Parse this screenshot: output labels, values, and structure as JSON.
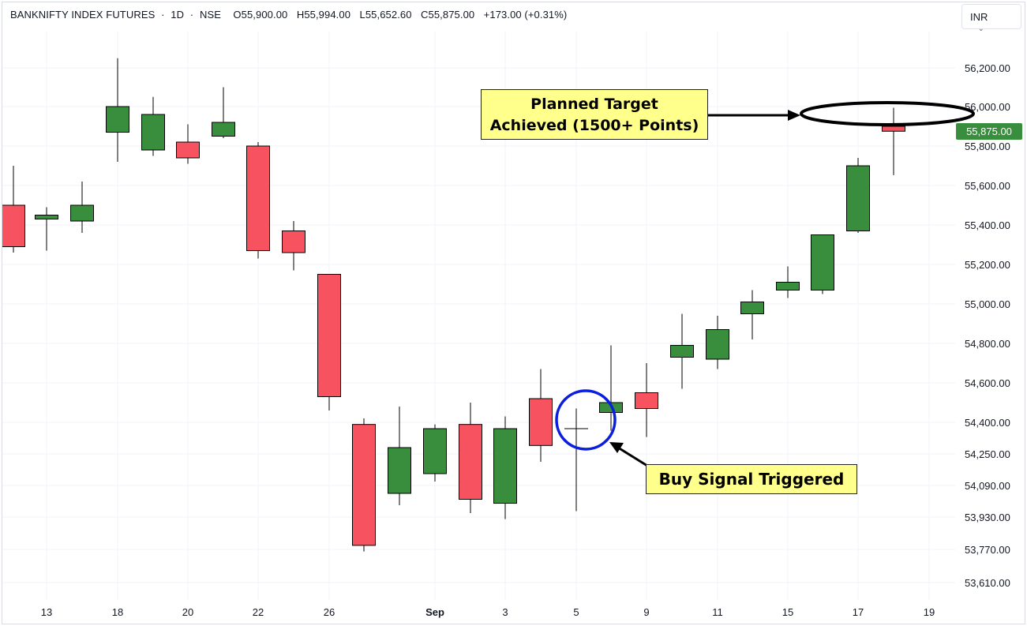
{
  "header": {
    "symbol": "BANKNIFTY INDEX FUTURES",
    "interval": "1D",
    "exchange": "NSE",
    "open_label": "O",
    "open": "55,900.00",
    "high_label": "H",
    "high": "55,994.00",
    "low_label": "L",
    "low": "55,652.60",
    "close_label": "C",
    "close": "55,875.00",
    "change": "+173.00 (+0.31%)",
    "separator": "·"
  },
  "currency": {
    "label": "INR",
    "caret": "⌄"
  },
  "last_price": {
    "label": "55,875.00",
    "color": "#388e3c"
  },
  "annotations": {
    "target_line1": "Planned Target",
    "target_line2": "Achieved (1500+ Points)",
    "buy_signal": "Buy Signal Triggered",
    "callout_fill": "#ffff8c",
    "buy_circle_color": "#0a1ee0",
    "target_ellipse_color": "#000000"
  },
  "colors": {
    "up": "#388e3c",
    "down": "#f7525f",
    "wick": "#000000",
    "grid": "#f0f3fa",
    "text": "#131722"
  },
  "chart_data": {
    "type": "candlestick",
    "title": "BANKNIFTY INDEX FUTURES · 1D · NSE",
    "y_ticks": [
      "56,200.00",
      "56,000.00",
      "55,800.00",
      "55,600.00",
      "55,400.00",
      "55,200.00",
      "55,000.00",
      "54,800.00",
      "54,600.00",
      "54,400.00",
      "54,250.00",
      "54,090.00",
      "53,930.00",
      "53,770.00",
      "53,610.00"
    ],
    "x_ticks": [
      "13",
      "18",
      "20",
      "22",
      "26",
      "Sep",
      "3",
      "5",
      "9",
      "11",
      "15",
      "17",
      "19"
    ],
    "candles": [
      {
        "date": "Aug 11",
        "open": 55500,
        "high": 55700,
        "low": 55260,
        "close": 55290
      },
      {
        "date": "Aug 12",
        "open": 55430,
        "high": 55490,
        "low": 55270,
        "close": 55450
      },
      {
        "date": "Aug 14",
        "open": 55420,
        "high": 55620,
        "low": 55360,
        "close": 55500
      },
      {
        "date": "Aug 18",
        "open": 55870,
        "high": 56250,
        "low": 55720,
        "close": 56000
      },
      {
        "date": "Aug 19",
        "open": 55780,
        "high": 56050,
        "low": 55750,
        "close": 55960
      },
      {
        "date": "Aug 20",
        "open": 55820,
        "high": 55910,
        "low": 55710,
        "close": 55740
      },
      {
        "date": "Aug 21",
        "open": 55850,
        "high": 56100,
        "low": 55840,
        "close": 55920
      },
      {
        "date": "Aug 22",
        "open": 55800,
        "high": 55820,
        "low": 55230,
        "close": 55270
      },
      {
        "date": "Aug 25",
        "open": 55370,
        "high": 55420,
        "low": 55170,
        "close": 55260
      },
      {
        "date": "Aug 26",
        "open": 55150,
        "high": 55150,
        "low": 54460,
        "close": 54530
      },
      {
        "date": "Aug 28",
        "open": 54390,
        "high": 54420,
        "low": 53760,
        "close": 53790
      },
      {
        "date": "Aug 29",
        "open": 54050,
        "high": 54480,
        "low": 53990,
        "close": 54280
      },
      {
        "date": "Sep 1",
        "open": 54150,
        "high": 54390,
        "low": 54110,
        "close": 54370
      },
      {
        "date": "Sep 2",
        "open": 54390,
        "high": 54500,
        "low": 53950,
        "close": 54020
      },
      {
        "date": "Sep 3",
        "open": 54000,
        "high": 54430,
        "low": 53920,
        "close": 54370
      },
      {
        "date": "Sep 4",
        "open": 54520,
        "high": 54670,
        "low": 54210,
        "close": 54290
      },
      {
        "date": "Sep 5",
        "open": 54370,
        "high": 54470,
        "low": 53960,
        "close": 54370
      },
      {
        "date": "Sep 8",
        "open": 54450,
        "high": 54790,
        "low": 54360,
        "close": 54500
      },
      {
        "date": "Sep 9",
        "open": 54550,
        "high": 54700,
        "low": 54330,
        "close": 54470
      },
      {
        "date": "Sep 10",
        "open": 54730,
        "high": 54950,
        "low": 54570,
        "close": 54790
      },
      {
        "date": "Sep 11",
        "open": 54720,
        "high": 54940,
        "low": 54670,
        "close": 54870
      },
      {
        "date": "Sep 12",
        "open": 54950,
        "high": 55070,
        "low": 54820,
        "close": 55010
      },
      {
        "date": "Sep 15",
        "open": 55070,
        "high": 55190,
        "low": 55030,
        "close": 55110
      },
      {
        "date": "Sep 16",
        "open": 55070,
        "high": 55350,
        "low": 55050,
        "close": 55350
      },
      {
        "date": "Sep 17",
        "open": 55370,
        "high": 55740,
        "low": 55360,
        "close": 55700
      },
      {
        "date": "Sep 18",
        "open": 55900,
        "high": 55994,
        "low": 55652.6,
        "close": 55875
      }
    ]
  }
}
